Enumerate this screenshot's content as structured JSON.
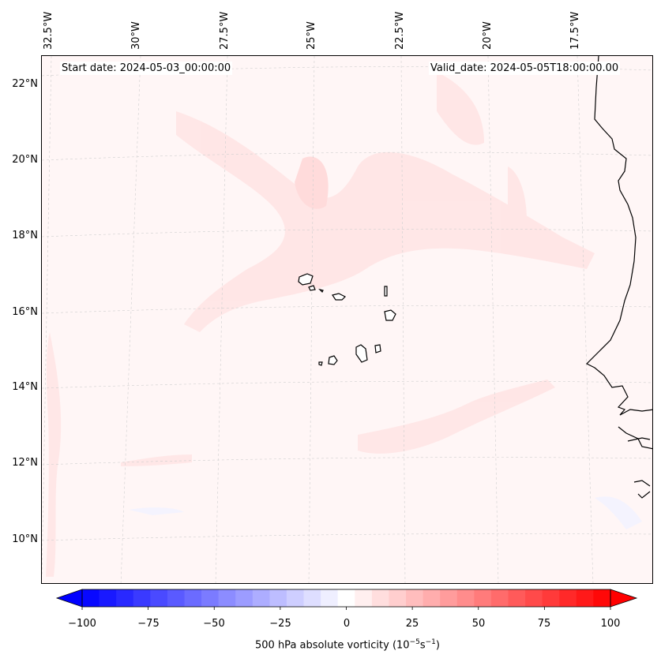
{
  "header": {
    "start_date": "Start date: 2024-05-03_00:00:00",
    "valid_date": "Valid_date: 2024-05-05T18:00:00.00"
  },
  "axes": {
    "longitude_labels": [
      "32.5°W",
      "30°W",
      "27.5°W",
      "25°W",
      "22.5°W",
      "20°W",
      "17.5°W"
    ],
    "latitude_labels": [
      "22°N",
      "20°N",
      "18°N",
      "16°N",
      "14°N",
      "12°N",
      "10°N"
    ]
  },
  "colorbar": {
    "label_prefix": "500 hPa absolute vorticity (10",
    "label_exp1": "−5",
    "label_mid": "s",
    "label_exp2": "−1",
    "label_suffix": ")",
    "ticks": [
      "−100",
      "−75",
      "−50",
      "−25",
      "0",
      "25",
      "50",
      "75",
      "100"
    ],
    "min_color": "#0000ff",
    "mid_color": "#ffffff",
    "max_color": "#ff0000",
    "levels": 31
  },
  "map": {
    "background_color": "#fff6f6",
    "feature_color": "#ffe3e3",
    "coastline_color": "#000000",
    "gridline_color": "#cccccc"
  }
}
